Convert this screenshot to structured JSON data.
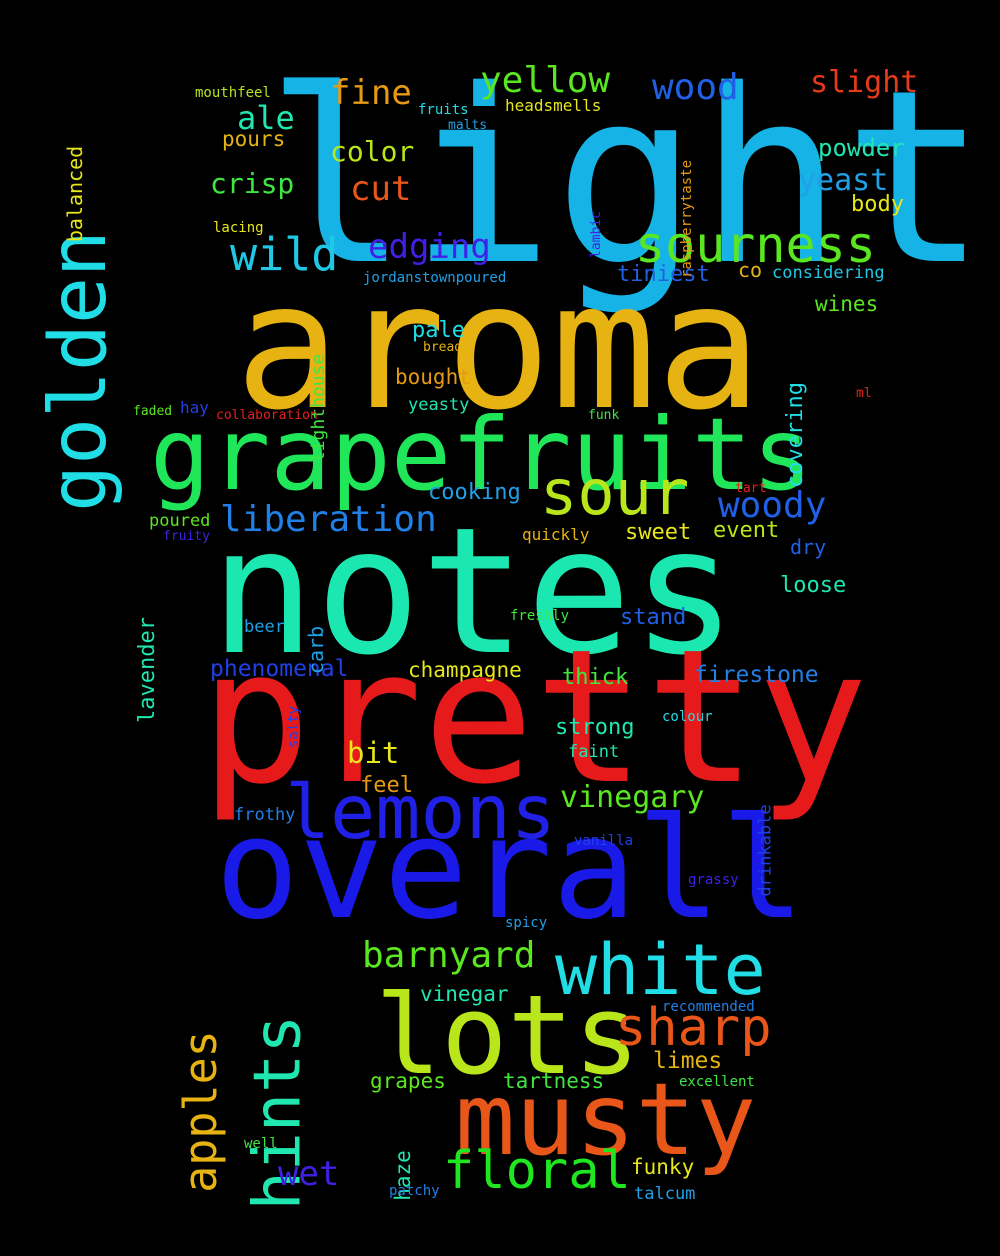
{
  "cloud": {
    "words": [
      {
        "text": "light",
        "color": "#16b3e6"
      },
      {
        "text": "aroma",
        "color": "#e6b312"
      },
      {
        "text": "notes",
        "color": "#1be8b0"
      },
      {
        "text": "pretty",
        "color": "#e61a1a"
      },
      {
        "text": "overall",
        "color": "#1a1ae8"
      },
      {
        "text": "grapefruits",
        "color": "#20e65a"
      },
      {
        "text": "golden",
        "color": "#20dde6"
      },
      {
        "text": "lots",
        "color": "#b8e61a"
      },
      {
        "text": "musty",
        "color": "#e8561a"
      },
      {
        "text": "white",
        "color": "#20dde6"
      },
      {
        "text": "lemons",
        "color": "#2020e6"
      },
      {
        "text": "sour",
        "color": "#b8e61a"
      },
      {
        "text": "sourness",
        "color": "#5ae620"
      },
      {
        "text": "hints",
        "color": "#20e6b0"
      },
      {
        "text": "floral",
        "color": "#20e620"
      },
      {
        "text": "sharp",
        "color": "#e8561a"
      },
      {
        "text": "apples",
        "color": "#e6b312"
      },
      {
        "text": "barnyard",
        "color": "#5ae620"
      },
      {
        "text": "wild",
        "color": "#20c8e6"
      },
      {
        "text": "liberation",
        "color": "#2080e6"
      },
      {
        "text": "woody",
        "color": "#2060e6"
      },
      {
        "text": "edging",
        "color": "#4020e6"
      },
      {
        "text": "yellow",
        "color": "#5ae620"
      },
      {
        "text": "wood",
        "color": "#2060e6"
      },
      {
        "text": "slight",
        "color": "#e63a1a"
      },
      {
        "text": "fine",
        "color": "#e69a12"
      },
      {
        "text": "ale",
        "color": "#20e6b0"
      },
      {
        "text": "cut",
        "color": "#e8561a"
      },
      {
        "text": "yeast",
        "color": "#20a0e6"
      },
      {
        "text": "vinegary",
        "color": "#5ae620"
      },
      {
        "text": "wet",
        "color": "#4020e6"
      },
      {
        "text": "crisp",
        "color": "#40e640"
      },
      {
        "text": "color",
        "color": "#b8e61a"
      },
      {
        "text": "powder",
        "color": "#20e6b0"
      },
      {
        "text": "body",
        "color": "#e6e61a"
      },
      {
        "text": "tiniest",
        "color": "#2060e6"
      },
      {
        "text": "co",
        "color": "#e6b312"
      },
      {
        "text": "considering",
        "color": "#20c8e6"
      },
      {
        "text": "wines",
        "color": "#5ae620"
      },
      {
        "text": "pale",
        "color": "#20dde6"
      },
      {
        "text": "bought",
        "color": "#e69a12"
      },
      {
        "text": "yeasty",
        "color": "#20e6b0"
      },
      {
        "text": "cooking",
        "color": "#20a0e6"
      },
      {
        "text": "sweet",
        "color": "#e6e61a"
      },
      {
        "text": "event",
        "color": "#b8e61a"
      },
      {
        "text": "dry",
        "color": "#2060e6"
      },
      {
        "text": "loose",
        "color": "#20e6b0"
      },
      {
        "text": "stand",
        "color": "#2060e6"
      },
      {
        "text": "firestone",
        "color": "#2080e6"
      },
      {
        "text": "thick",
        "color": "#40e640"
      },
      {
        "text": "strong",
        "color": "#20e6b0"
      },
      {
        "text": "champagne",
        "color": "#e6e61a"
      },
      {
        "text": "phenomenal",
        "color": "#2040e6"
      },
      {
        "text": "bit",
        "color": "#e6e61a"
      },
      {
        "text": "feel",
        "color": "#e69a12"
      },
      {
        "text": "vinegar",
        "color": "#20e6b0"
      },
      {
        "text": "limes",
        "color": "#e6b312"
      },
      {
        "text": "grapes",
        "color": "#5ae620"
      },
      {
        "text": "tartness",
        "color": "#40e640"
      },
      {
        "text": "funky",
        "color": "#e6e61a"
      },
      {
        "text": "talcum",
        "color": "#20a0e6"
      },
      {
        "text": "pours",
        "color": "#e6b312"
      },
      {
        "text": "mouthfeel",
        "color": "#b8e61a"
      },
      {
        "text": "fruits",
        "color": "#20dde6"
      },
      {
        "text": "headsmells",
        "color": "#e6e61a"
      },
      {
        "text": "malts",
        "color": "#20a0e6"
      },
      {
        "text": "balanced",
        "color": "#e6e61a"
      },
      {
        "text": "lacing",
        "color": "#e6e61a"
      },
      {
        "text": "jordanstownpoured",
        "color": "#20a0e6"
      },
      {
        "text": "lighthouse",
        "color": "#40e640"
      },
      {
        "text": "bready",
        "color": "#e6b312"
      },
      {
        "text": "hay",
        "color": "#2040e6"
      },
      {
        "text": "faded",
        "color": "#5ae620"
      },
      {
        "text": "collaboration",
        "color": "#e6201a"
      },
      {
        "text": "funk",
        "color": "#40e640"
      },
      {
        "text": "ml",
        "color": "#e6201a"
      },
      {
        "text": "tart",
        "color": "#e6201a"
      },
      {
        "text": "poured",
        "color": "#5ae620"
      },
      {
        "text": "fruity",
        "color": "#4020e6"
      },
      {
        "text": "quickly",
        "color": "#e6b312"
      },
      {
        "text": "covering",
        "color": "#20dde6"
      },
      {
        "text": "raspberrytaste",
        "color": "#e69a12"
      },
      {
        "text": "lambic",
        "color": "#4020e6"
      },
      {
        "text": "lavender",
        "color": "#20e6b0"
      },
      {
        "text": "carb",
        "color": "#20a0e6"
      },
      {
        "text": "beer",
        "color": "#20a0e6"
      },
      {
        "text": "freshly",
        "color": "#40e640"
      },
      {
        "text": "colour",
        "color": "#20dde6"
      },
      {
        "text": "faint",
        "color": "#20e6b0"
      },
      {
        "text": "salty",
        "color": "#2040e6"
      },
      {
        "text": "frothy",
        "color": "#2080e6"
      },
      {
        "text": "drinkable",
        "color": "#2040e6"
      },
      {
        "text": "vanilla",
        "color": "#2040e6"
      },
      {
        "text": "grassy",
        "color": "#4020e6"
      },
      {
        "text": "spicy",
        "color": "#20a0e6"
      },
      {
        "text": "recommended",
        "color": "#2080e6"
      },
      {
        "text": "excellent",
        "color": "#40e640"
      },
      {
        "text": "haze",
        "color": "#20e6b0"
      },
      {
        "text": "well",
        "color": "#40e640"
      },
      {
        "text": "patchy",
        "color": "#2080e6"
      }
    ]
  }
}
